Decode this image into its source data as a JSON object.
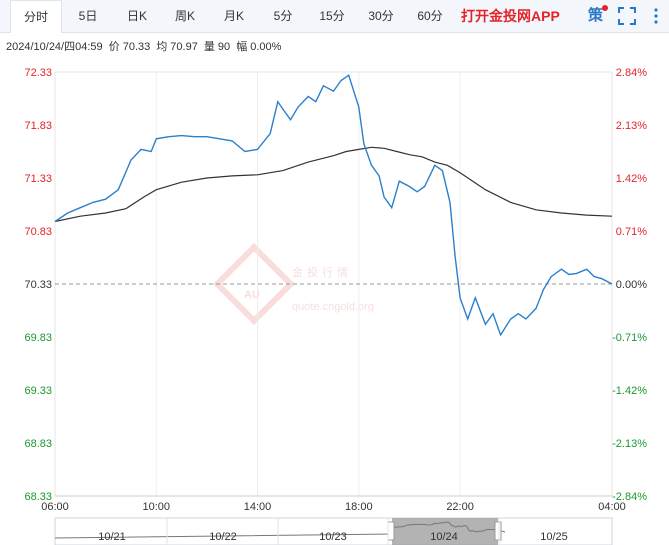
{
  "tabs": [
    {
      "label": "分时",
      "active": true
    },
    {
      "label": "5日"
    },
    {
      "label": "日K"
    },
    {
      "label": "周K"
    },
    {
      "label": "月K"
    },
    {
      "label": "5分"
    },
    {
      "label": "15分"
    },
    {
      "label": "30分"
    },
    {
      "label": "60分"
    }
  ],
  "app_link": "打开金投网APP",
  "strategy_label": "策",
  "icons": {
    "fullscreen": "fullscreen-icon",
    "more": "vertical-dots-icon"
  },
  "info": {
    "datetime": "2024/10/24/四04:59",
    "price_label": "价",
    "price": "70.33",
    "avg_label": "均",
    "avg": "70.97",
    "volume_label": "量",
    "volume": "90",
    "change_label": "幅",
    "change": "0.00%"
  },
  "watermark": {
    "name": "金投行情",
    "url": "quote.cngold.org",
    "logo": "AU"
  },
  "colors": {
    "price_line": "#2b7fcb",
    "avg_line": "#333333",
    "up": "#e5232a",
    "down": "#1a9a2e",
    "base": "#333333"
  },
  "chart_data": {
    "type": "line",
    "base_price": 70.33,
    "y_ticks_left": [
      "72.33",
      "71.83",
      "71.33",
      "70.83",
      "70.33",
      "69.83",
      "69.33",
      "68.83",
      "68.33"
    ],
    "y_ticks_right": [
      "2.84%",
      "2.13%",
      "1.42%",
      "0.71%",
      "0.00%",
      "-0.71%",
      "-1.42%",
      "-2.13%",
      "-2.84%"
    ],
    "ylim": [
      68.33,
      72.33
    ],
    "x_ticks": [
      "06:00",
      "10:00",
      "14:00",
      "18:00",
      "22:00",
      "04:00"
    ],
    "x_hours": [
      0,
      4,
      8,
      12,
      16,
      22
    ],
    "xlim_hours": [
      0,
      22
    ],
    "series": [
      {
        "key": "price",
        "hours": [
          0,
          0.5,
          1,
          1.5,
          2,
          2.5,
          3,
          3.4,
          3.8,
          4,
          4.5,
          5,
          5.5,
          6,
          6.5,
          7,
          7.5,
          8,
          8.5,
          8.8,
          9,
          9.3,
          9.6,
          10,
          10.3,
          10.6,
          11,
          11.3,
          11.6,
          12,
          12.2,
          12.5,
          12.8,
          13,
          13.3,
          13.6,
          14,
          14.3,
          14.6,
          15,
          15.3,
          15.6,
          15.8,
          16,
          16.3,
          16.6,
          17,
          17.3,
          17.6,
          18,
          18.3,
          18.6,
          19,
          19.3,
          19.6,
          20,
          20.3,
          20.6,
          21,
          21.3,
          21.6,
          22
        ],
        "values": [
          70.92,
          71.0,
          71.05,
          71.1,
          71.13,
          71.22,
          71.5,
          71.6,
          71.58,
          71.7,
          71.72,
          71.73,
          71.72,
          71.72,
          71.7,
          71.68,
          71.58,
          71.6,
          71.75,
          72.05,
          71.98,
          71.88,
          72.0,
          72.1,
          72.05,
          72.2,
          72.15,
          72.25,
          72.3,
          72.0,
          71.65,
          71.45,
          71.35,
          71.15,
          71.05,
          71.3,
          71.25,
          71.2,
          71.25,
          71.45,
          71.4,
          71.1,
          70.6,
          70.2,
          70.0,
          70.2,
          69.95,
          70.05,
          69.85,
          70.0,
          70.05,
          70.0,
          70.1,
          70.28,
          70.4,
          70.47,
          70.42,
          70.43,
          70.47,
          70.4,
          70.38,
          70.33
        ]
      },
      {
        "key": "avg",
        "hours": [
          0,
          1,
          2,
          2.8,
          3.5,
          4,
          5,
          6,
          7,
          8,
          9,
          10,
          11,
          11.5,
          12,
          12.5,
          13,
          13.5,
          14,
          14.5,
          15,
          15.5,
          16,
          17,
          18,
          19,
          20,
          21,
          22
        ],
        "values": [
          70.92,
          70.97,
          71.0,
          71.04,
          71.15,
          71.22,
          71.29,
          71.33,
          71.35,
          71.36,
          71.4,
          71.48,
          71.54,
          71.58,
          71.6,
          71.62,
          71.61,
          71.58,
          71.55,
          71.53,
          71.48,
          71.45,
          71.38,
          71.22,
          71.1,
          71.03,
          71.0,
          70.98,
          70.97
        ]
      }
    ],
    "navigator": {
      "labels": [
        "10/21",
        "10/22",
        "10/23",
        "10/24",
        "10/25"
      ]
    }
  }
}
